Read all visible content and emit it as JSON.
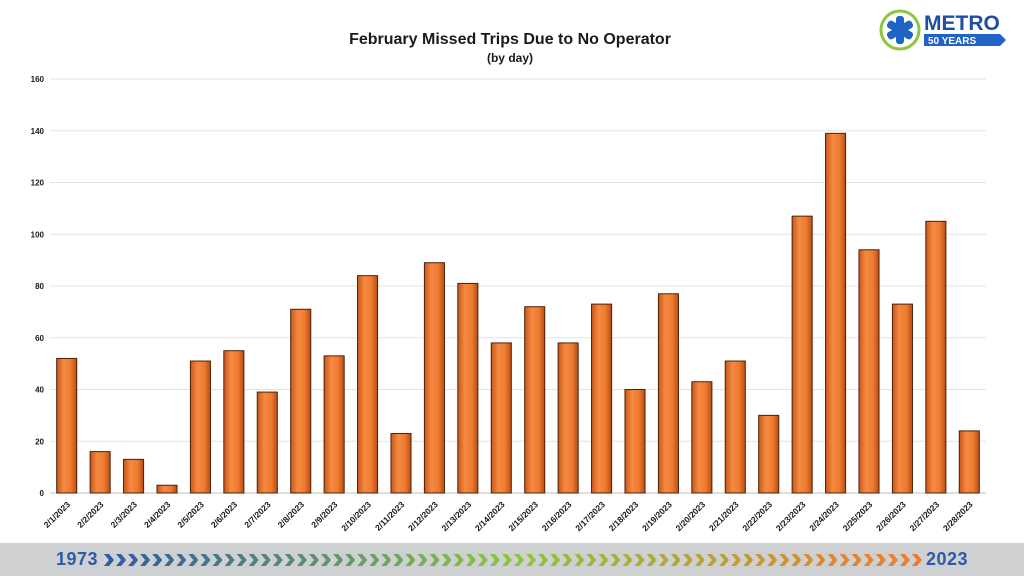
{
  "chart_data": {
    "type": "bar",
    "title": "February Missed Trips Due to No Operator",
    "subtitle": "(by day)",
    "xlabel": "",
    "ylabel": "",
    "ylim": [
      0,
      160
    ],
    "yticks": [
      0,
      20,
      40,
      60,
      80,
      100,
      120,
      140,
      160
    ],
    "grid": true,
    "categories": [
      "2/1/2023",
      "2/2/2023",
      "2/3/2023",
      "2/4/2023",
      "2/5/2023",
      "2/6/2023",
      "2/7/2023",
      "2/8/2023",
      "2/9/2023",
      "2/10/2023",
      "2/11/2023",
      "2/12/2023",
      "2/13/2023",
      "2/14/2023",
      "2/15/2023",
      "2/16/2023",
      "2/17/2023",
      "2/18/2023",
      "2/19/2023",
      "2/20/2023",
      "2/21/2023",
      "2/22/2023",
      "2/23/2023",
      "2/24/2023",
      "2/25/2023",
      "2/26/2023",
      "2/27/2023",
      "2/28/2023"
    ],
    "values": [
      52,
      16,
      13,
      3,
      51,
      55,
      39,
      71,
      53,
      84,
      23,
      89,
      81,
      58,
      72,
      58,
      73,
      40,
      77,
      43,
      51,
      30,
      107,
      139,
      94,
      73,
      105,
      24
    ],
    "bar_color": "#ee7a30"
  },
  "logo": {
    "brand": "METRO",
    "tagline": "50 YEARS"
  },
  "footer": {
    "start_year": "1973",
    "end_year": "2023"
  }
}
